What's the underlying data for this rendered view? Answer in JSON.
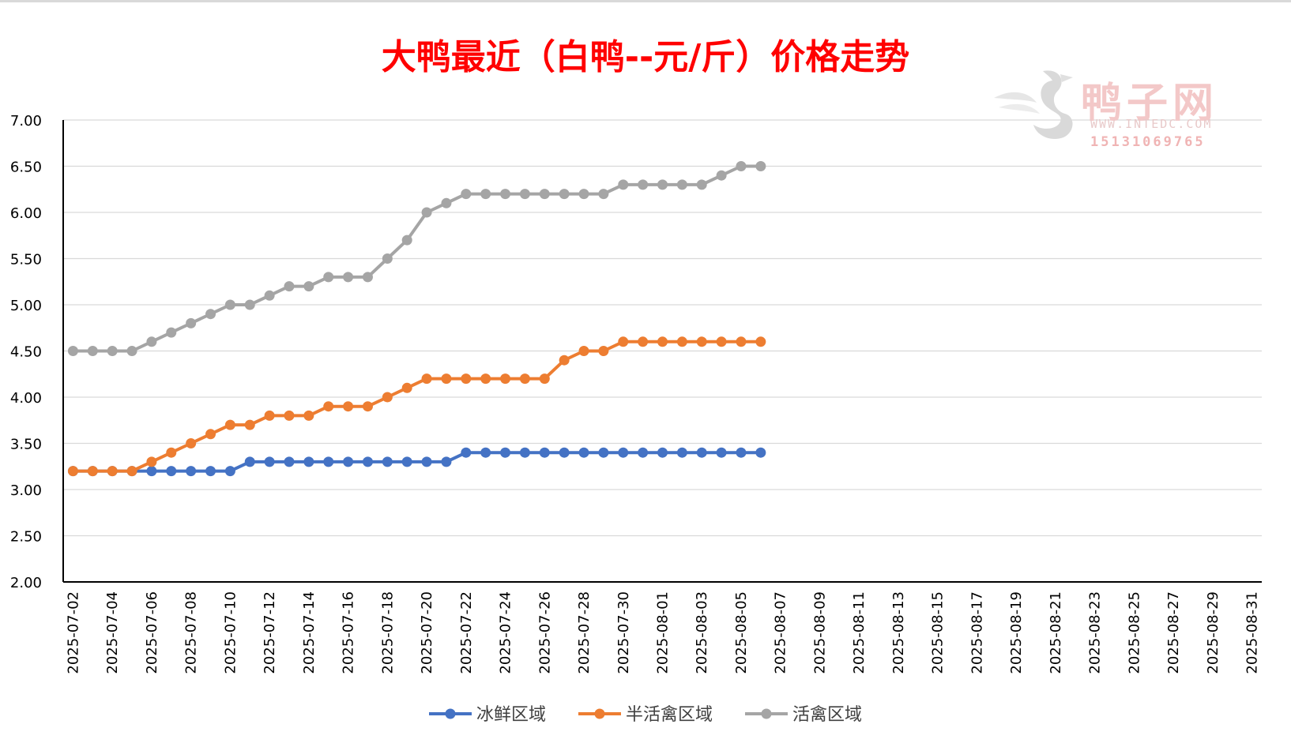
{
  "watermark": {
    "name": "鸭子网",
    "url": "WWW.INTEDC.COM",
    "phone": "15131069765"
  },
  "chart_data": {
    "type": "line",
    "title": "大鸭最近（白鸭--元/斤）价格走势",
    "ylim": [
      2.0,
      7.0
    ],
    "y_ticks": [
      "2.00",
      "2.50",
      "3.00",
      "3.50",
      "4.00",
      "4.50",
      "5.00",
      "5.50",
      "6.00",
      "6.50",
      "7.00"
    ],
    "x_range": [
      "2025-07-02",
      "2025-08-31"
    ],
    "x_ticks": [
      "2025-07-02",
      "2025-07-04",
      "2025-07-06",
      "2025-07-08",
      "2025-07-10",
      "2025-07-12",
      "2025-07-14",
      "2025-07-16",
      "2025-07-18",
      "2025-07-20",
      "2025-07-22",
      "2025-07-24",
      "2025-07-26",
      "2025-07-28",
      "2025-07-30",
      "2025-08-01",
      "2025-08-03",
      "2025-08-05",
      "2025-08-07",
      "2025-08-09",
      "2025-08-11",
      "2025-08-13",
      "2025-08-15",
      "2025-08-17",
      "2025-08-19",
      "2025-08-21",
      "2025-08-23",
      "2025-08-25",
      "2025-08-27",
      "2025-08-29",
      "2025-08-31"
    ],
    "x": [
      "2025-07-02",
      "2025-07-03",
      "2025-07-04",
      "2025-07-05",
      "2025-07-06",
      "2025-07-07",
      "2025-07-08",
      "2025-07-09",
      "2025-07-10",
      "2025-07-11",
      "2025-07-12",
      "2025-07-13",
      "2025-07-14",
      "2025-07-15",
      "2025-07-16",
      "2025-07-17",
      "2025-07-18",
      "2025-07-19",
      "2025-07-20",
      "2025-07-21",
      "2025-07-22",
      "2025-07-23",
      "2025-07-24",
      "2025-07-25",
      "2025-07-26",
      "2025-07-27",
      "2025-07-28",
      "2025-07-29",
      "2025-07-30",
      "2025-07-31",
      "2025-08-01",
      "2025-08-02",
      "2025-08-03",
      "2025-08-04",
      "2025-08-05",
      "2025-08-06"
    ],
    "grid": true,
    "legend": "bottom",
    "series": [
      {
        "name": "冰鲜区域",
        "color": "#4472c4",
        "values": [
          3.2,
          3.2,
          3.2,
          3.2,
          3.2,
          3.2,
          3.2,
          3.2,
          3.2,
          3.3,
          3.3,
          3.3,
          3.3,
          3.3,
          3.3,
          3.3,
          3.3,
          3.3,
          3.3,
          3.3,
          3.4,
          3.4,
          3.4,
          3.4,
          3.4,
          3.4,
          3.4,
          3.4,
          3.4,
          3.4,
          3.4,
          3.4,
          3.4,
          3.4,
          3.4,
          3.4
        ]
      },
      {
        "name": "半活禽区域",
        "color": "#ed7d31",
        "values": [
          3.2,
          3.2,
          3.2,
          3.2,
          3.3,
          3.4,
          3.5,
          3.6,
          3.7,
          3.7,
          3.8,
          3.8,
          3.8,
          3.9,
          3.9,
          3.9,
          4.0,
          4.1,
          4.2,
          4.2,
          4.2,
          4.2,
          4.2,
          4.2,
          4.2,
          4.4,
          4.5,
          4.5,
          4.6,
          4.6,
          4.6,
          4.6,
          4.6,
          4.6,
          4.6,
          4.6
        ]
      },
      {
        "name": "活禽区域",
        "color": "#a5a5a5",
        "values": [
          4.5,
          4.5,
          4.5,
          4.5,
          4.6,
          4.7,
          4.8,
          4.9,
          5.0,
          5.0,
          5.1,
          5.2,
          5.2,
          5.3,
          5.3,
          5.3,
          5.5,
          5.7,
          6.0,
          6.1,
          6.2,
          6.2,
          6.2,
          6.2,
          6.2,
          6.2,
          6.2,
          6.2,
          6.3,
          6.3,
          6.3,
          6.3,
          6.3,
          6.4,
          6.5,
          6.5
        ]
      }
    ]
  }
}
